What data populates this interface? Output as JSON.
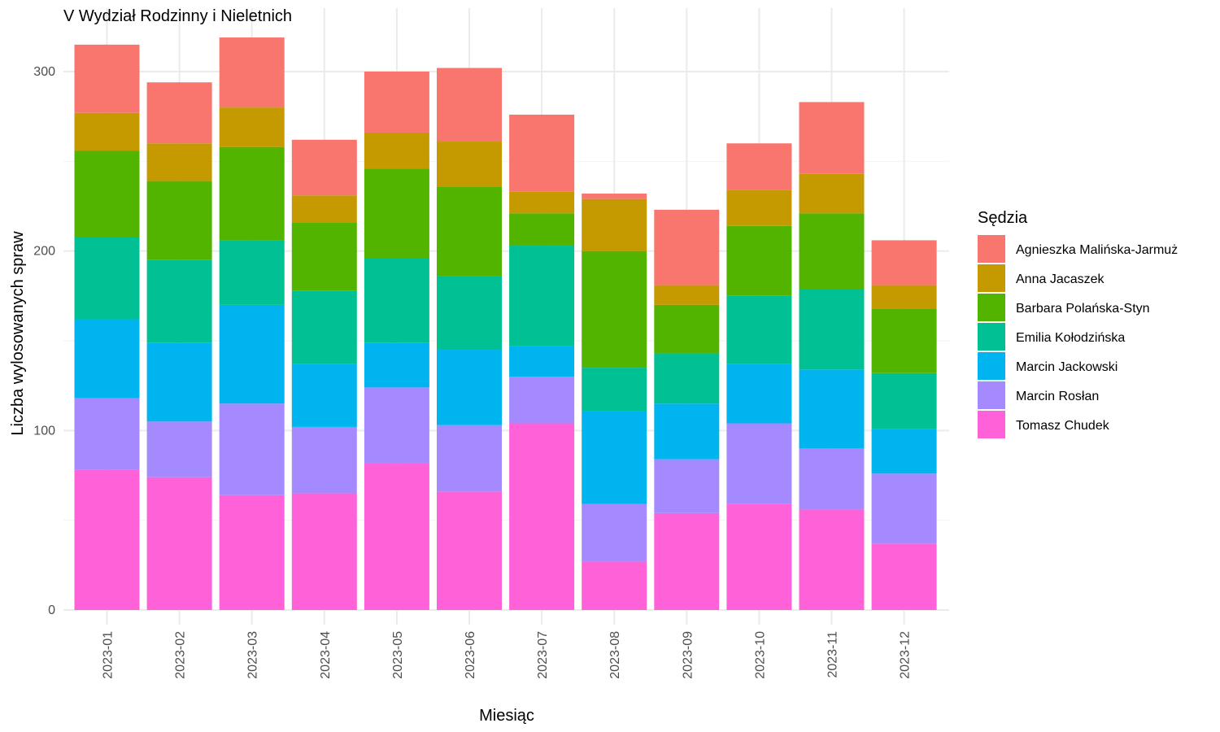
{
  "chart_data": {
    "type": "bar",
    "stacked": true,
    "title": "V Wydział Rodzinny i Nieletnich",
    "xlabel": "Miesiąc",
    "ylabel": "Liczba wylosowanych spraw",
    "ylim": [
      0,
      320
    ],
    "yticks": [
      0,
      100,
      200,
      300
    ],
    "grid": true,
    "legend_title": "Sędzia",
    "legend_position": "right",
    "categories": [
      "2023-01",
      "2023-02",
      "2023-03",
      "2023-04",
      "2023-05",
      "2023-06",
      "2023-07",
      "2023-08",
      "2023-09",
      "2023-10",
      "2023-11",
      "2023-12"
    ],
    "series": [
      {
        "name": "Tomasz Chudek",
        "color": "#FF61D8",
        "values": [
          78,
          74,
          64,
          65,
          82,
          66,
          104,
          27,
          54,
          59,
          56,
          37
        ]
      },
      {
        "name": "Marcin Rosłan",
        "color": "#A58AFF",
        "values": [
          40,
          31,
          51,
          37,
          42,
          37,
          26,
          32,
          30,
          45,
          34,
          39
        ]
      },
      {
        "name": "Marcin Jackowski",
        "color": "#00B4EF",
        "values": [
          44,
          44,
          55,
          35,
          25,
          42,
          17,
          52,
          31,
          33,
          44,
          25
        ]
      },
      {
        "name": "Emilia Kołodzińska",
        "color": "#00C094",
        "values": [
          46,
          46,
          36,
          41,
          47,
          41,
          56,
          24,
          28,
          38,
          45,
          31
        ]
      },
      {
        "name": "Barbara Polańska-Styn",
        "color": "#53B400",
        "values": [
          48,
          44,
          52,
          38,
          50,
          50,
          18,
          65,
          27,
          39,
          42,
          36
        ]
      },
      {
        "name": "Anna Jacaszek",
        "color": "#C49A00",
        "values": [
          21,
          21,
          22,
          15,
          20,
          25,
          12,
          29,
          11,
          20,
          22,
          13
        ]
      },
      {
        "name": "Agnieszka Malińska-Jarmuż",
        "color": "#F8766D",
        "values": [
          38,
          34,
          39,
          31,
          34,
          41,
          43,
          3,
          42,
          26,
          40,
          25
        ]
      }
    ],
    "legend_order": [
      "Agnieszka Malińska-Jarmuż",
      "Anna Jacaszek",
      "Barbara Polańska-Styn",
      "Emilia Kołodzińska",
      "Marcin Jackowski",
      "Marcin Rosłan",
      "Tomasz Chudek"
    ]
  }
}
